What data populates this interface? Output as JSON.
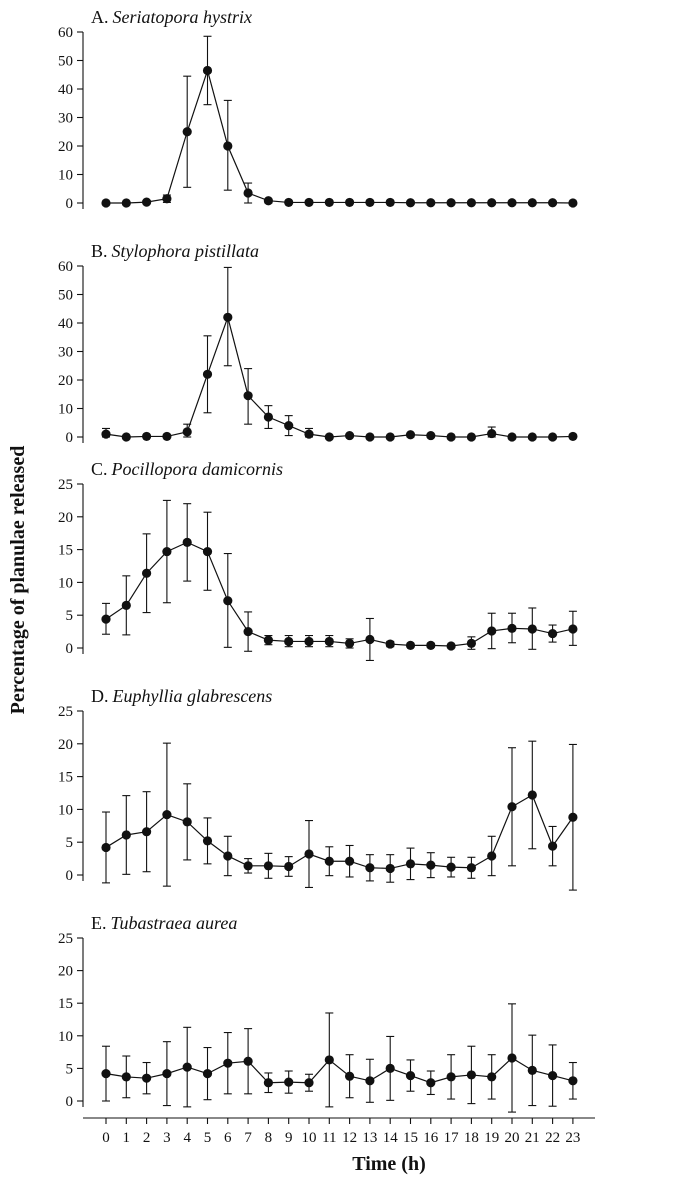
{
  "figure": {
    "xlabel": "Time (h)",
    "ylabel": "Percentage of planulae released"
  },
  "chart_data": [
    {
      "type": "line",
      "panel_letter": "A.",
      "species": "Seriatopora hystrix",
      "x": [
        0,
        1,
        2,
        3,
        4,
        5,
        6,
        7,
        8,
        9,
        10,
        11,
        12,
        13,
        14,
        15,
        16,
        17,
        18,
        19,
        20,
        21,
        22,
        23
      ],
      "values": [
        0,
        0,
        0.3,
        1.5,
        25,
        46.5,
        20,
        3.5,
        0.8,
        0.2,
        0.2,
        0.2,
        0.2,
        0.2,
        0.2,
        0.1,
        0.1,
        0.1,
        0.1,
        0.1,
        0.1,
        0.1,
        0.1,
        0
      ],
      "error_upper": [
        0,
        0,
        0,
        2.8,
        44.5,
        58.5,
        36,
        7,
        0,
        0,
        0,
        0,
        0,
        0,
        0,
        0,
        0,
        0,
        0,
        0,
        0,
        0,
        0,
        0
      ],
      "error_lower": [
        0,
        0,
        0,
        0.2,
        5.5,
        34.5,
        4.5,
        0,
        0,
        0,
        0,
        0,
        0,
        0,
        0,
        0,
        0,
        0,
        0,
        0,
        0,
        0,
        0,
        0
      ],
      "ylim": [
        0,
        60
      ],
      "yticks": [
        0,
        10,
        20,
        30,
        40,
        50,
        60
      ]
    },
    {
      "type": "line",
      "panel_letter": "B.",
      "species": "Stylophora pistillata",
      "x": [
        0,
        1,
        2,
        3,
        4,
        5,
        6,
        7,
        8,
        9,
        10,
        11,
        12,
        13,
        14,
        15,
        16,
        17,
        18,
        19,
        20,
        21,
        22,
        23
      ],
      "values": [
        1,
        0,
        0.2,
        0.2,
        1.8,
        22,
        42,
        14.5,
        7,
        4,
        1,
        0,
        0.5,
        0,
        0,
        0.8,
        0.5,
        0,
        0,
        1.2,
        0,
        0,
        0,
        0.2
      ],
      "error_upper": [
        3,
        0,
        0,
        0,
        4.5,
        35.5,
        59.5,
        24,
        11,
        7.5,
        3,
        0,
        0,
        0,
        0,
        0,
        0,
        0,
        0,
        3.5,
        0,
        0,
        0,
        0
      ],
      "error_lower": [
        0,
        0,
        0,
        0,
        0,
        8.5,
        25,
        4.5,
        3,
        0.5,
        0,
        0,
        0,
        0,
        0,
        0,
        0,
        0,
        0,
        0,
        0,
        0,
        0,
        0
      ],
      "ylim": [
        0,
        60
      ],
      "yticks": [
        0,
        10,
        20,
        30,
        40,
        50,
        60
      ]
    },
    {
      "type": "line",
      "panel_letter": "C.",
      "species": "Pocillopora  damicornis",
      "x": [
        0,
        1,
        2,
        3,
        4,
        5,
        6,
        7,
        8,
        9,
        10,
        11,
        12,
        13,
        14,
        15,
        16,
        17,
        18,
        19,
        20,
        21,
        22,
        23
      ],
      "values": [
        4.4,
        6.5,
        11.4,
        14.7,
        16.1,
        14.7,
        7.2,
        2.5,
        1.2,
        1,
        1,
        1,
        0.7,
        1.3,
        0.6,
        0.4,
        0.4,
        0.3,
        0.7,
        2.6,
        3,
        2.9,
        2.2,
        2.9
      ],
      "error_upper": [
        6.8,
        11,
        17.4,
        22.5,
        22,
        20.7,
        14.4,
        5.5,
        1.9,
        1.9,
        1.9,
        1.9,
        1.4,
        4.5,
        1,
        0.7,
        0.7,
        0.5,
        1.7,
        5.3,
        5.3,
        6.1,
        3.5,
        5.6
      ],
      "error_lower": [
        2.1,
        2,
        5.4,
        6.9,
        10.2,
        8.8,
        0.1,
        -0.5,
        0.5,
        0.2,
        0.2,
        0.2,
        0,
        -1.9,
        0.2,
        0.1,
        0.1,
        0.1,
        -0.2,
        -0.1,
        0.8,
        -0.2,
        0.9,
        0.4
      ],
      "ylim": [
        0,
        25
      ],
      "yticks": [
        0,
        5,
        10,
        15,
        20,
        25
      ]
    },
    {
      "type": "line",
      "panel_letter": "D.",
      "species": "Euphyllia glabrescens",
      "x": [
        0,
        1,
        2,
        3,
        4,
        5,
        6,
        7,
        8,
        9,
        10,
        11,
        12,
        13,
        14,
        15,
        16,
        17,
        18,
        19,
        20,
        21,
        22,
        23
      ],
      "values": [
        4.2,
        6.1,
        6.6,
        9.2,
        8.1,
        5.2,
        2.9,
        1.4,
        1.4,
        1.3,
        3.2,
        2.1,
        2.1,
        1.1,
        1,
        1.7,
        1.5,
        1.2,
        1.1,
        2.9,
        10.4,
        12.2,
        4.4,
        8.8
      ],
      "error_upper": [
        9.6,
        12.1,
        12.7,
        20.1,
        13.9,
        8.7,
        5.9,
        2.5,
        3.3,
        2.8,
        8.3,
        4.3,
        4.5,
        3.1,
        3.1,
        4.1,
        3.4,
        2.7,
        2.7,
        5.9,
        19.4,
        20.4,
        7.4,
        19.9
      ],
      "error_lower": [
        -1.2,
        0.1,
        0.5,
        -1.7,
        2.3,
        1.7,
        -0.1,
        0.3,
        -0.5,
        -0.2,
        -1.9,
        -0.1,
        -0.3,
        -0.9,
        -1.1,
        -0.7,
        -0.4,
        -0.3,
        -0.5,
        -0.1,
        1.4,
        4,
        1.4,
        -2.3
      ],
      "ylim": [
        0,
        25
      ],
      "yticks": [
        0,
        5,
        10,
        15,
        20,
        25
      ]
    },
    {
      "type": "line",
      "panel_letter": "E.",
      "species": "Tubastraea aurea",
      "x": [
        0,
        1,
        2,
        3,
        4,
        5,
        6,
        7,
        8,
        9,
        10,
        11,
        12,
        13,
        14,
        15,
        16,
        17,
        18,
        19,
        20,
        21,
        22,
        23
      ],
      "values": [
        4.2,
        3.7,
        3.5,
        4.2,
        5.2,
        4.2,
        5.8,
        6.1,
        2.8,
        2.9,
        2.8,
        6.3,
        3.8,
        3.1,
        5,
        3.9,
        2.8,
        3.7,
        4,
        3.7,
        6.6,
        4.7,
        3.9,
        3.1
      ],
      "error_upper": [
        8.4,
        6.9,
        5.9,
        9.1,
        11.3,
        8.2,
        10.5,
        11.1,
        4.3,
        4.6,
        4.1,
        13.5,
        7.1,
        6.4,
        9.9,
        6.3,
        4.6,
        7.1,
        8.4,
        7.1,
        14.9,
        10.1,
        8.6,
        5.9
      ],
      "error_lower": [
        0,
        0.5,
        1.1,
        -0.7,
        -0.9,
        0.2,
        1.1,
        1.1,
        1.3,
        1.2,
        1.5,
        -0.9,
        0.5,
        -0.2,
        0.1,
        1.5,
        1,
        0.3,
        -0.4,
        0.3,
        -1.7,
        -0.7,
        -0.8,
        0.3
      ],
      "ylim": [
        0,
        25
      ],
      "yticks": [
        0,
        5,
        10,
        15,
        20,
        25
      ]
    }
  ]
}
